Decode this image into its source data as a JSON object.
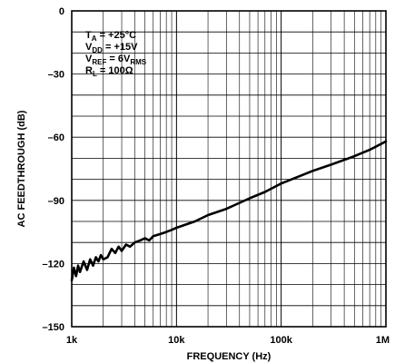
{
  "chart_data": {
    "type": "line",
    "title": "",
    "xlabel": "FREQUENCY (Hz)",
    "ylabel": "AC FEEDTHROUGH (dB)",
    "x_scale": "log",
    "xlim": [
      1000,
      1000000
    ],
    "ylim": [
      -150,
      0
    ],
    "x_ticks": [
      1000,
      10000,
      100000,
      1000000
    ],
    "x_tick_labels": [
      "1k",
      "10k",
      "100k",
      "1M"
    ],
    "y_ticks": [
      0,
      -30,
      -60,
      -90,
      -120,
      -150
    ],
    "y_tick_labels": [
      "0",
      "–30",
      "–60",
      "–90",
      "–120",
      "–150"
    ],
    "grid": true,
    "legend": "none",
    "conditions": [
      {
        "base": "T",
        "sub": "A",
        "rest": " = +25°C"
      },
      {
        "base": "V",
        "sub": "DD",
        "rest": " = +15V"
      },
      {
        "base": "V",
        "sub": "REF",
        "rest": " = 6V",
        "sub2": "RMS"
      },
      {
        "base": "R",
        "sub": "L",
        "rest": " = 100Ω"
      }
    ],
    "series": [
      {
        "x": [
          1000,
          1050,
          1100,
          1150,
          1200,
          1300,
          1400,
          1500,
          1600,
          1700,
          1800,
          1900,
          2000,
          2200,
          2400,
          2600,
          2800,
          3000,
          3300,
          3600,
          4000,
          4500,
          5000,
          5500,
          6000,
          7000,
          8000,
          9000,
          10000,
          15000,
          20000,
          30000,
          50000,
          70000,
          100000,
          200000,
          300000,
          500000,
          700000,
          1000000
        ],
        "y": [
          -128,
          -122,
          -126,
          -121,
          -124,
          -119,
          -123,
          -118,
          -121,
          -117,
          -119,
          -116,
          -118,
          -117,
          -113,
          -115,
          -112,
          -114,
          -111,
          -112,
          -110,
          -109,
          -108,
          -109,
          -107,
          -106,
          -105,
          -104,
          -103,
          -100,
          -97,
          -94,
          -89,
          -86,
          -82,
          -76,
          -73,
          -69,
          -66,
          -62
        ]
      }
    ]
  }
}
